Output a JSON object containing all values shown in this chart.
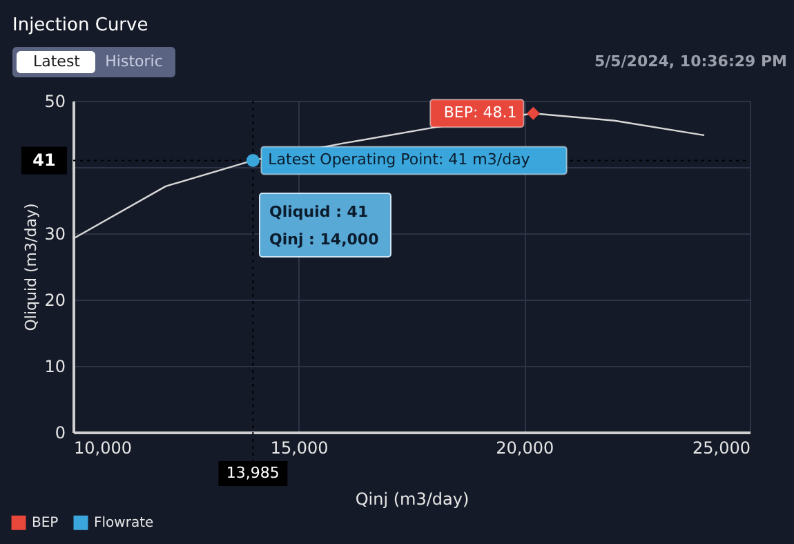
{
  "chart_data": {
    "type": "line",
    "title": "Injection Curve",
    "subtitle": "5/5/2024, 10:36:29 PM",
    "xlabel": "Qinj (m3/day)",
    "ylabel": "Qliquid (m3/day)",
    "series": [
      {
        "color": "#d9d9d9",
        "marker": "none",
        "x": [
          10000,
          12050,
          13985,
          16000,
          18020,
          20200,
          22000,
          23990
        ],
        "values": [
          29.2,
          37.1,
          41,
          43.6,
          46,
          48.1,
          47,
          44.8
        ]
      },
      {
        "type": "scatter",
        "name": "BEP",
        "color": "#e8473b",
        "marker": "diamond",
        "x": [
          20200
        ],
        "values": [
          48.1
        ],
        "value_labels": [
          "BEP: 48.1"
        ]
      },
      {
        "type": "scatter",
        "name": "Flowrate",
        "color": "#3aa6dc",
        "marker": "circle",
        "x": [
          13985
        ],
        "values": [
          41
        ],
        "value_labels": [
          "Latest Operating Point: 41 m3/day"
        ]
      }
    ],
    "xlim": [
      10000,
      25000
    ],
    "xticks": [
      {
        "value": 10000,
        "label": "10,000"
      },
      {
        "value": 15000,
        "label": "15,000"
      },
      {
        "value": 20000,
        "label": "20,000"
      },
      {
        "value": 25000,
        "label": "25,000"
      }
    ],
    "ylim": [
      0,
      50
    ],
    "yticks": [
      0,
      10,
      20,
      30,
      {
        "value": 40,
        "label": null
      },
      50
    ],
    "ref_lines": [
      {
        "axis": "x",
        "value": 13985,
        "label": "13,985",
        "line_style": "dotted",
        "color": "#000000"
      },
      {
        "axis": "y",
        "value": 41,
        "label": "41",
        "line_style": "dotted",
        "color": "#000000"
      }
    ],
    "annotations": [
      "Latest",
      "Historic",
      "Qliquid : 41",
      "Qinj : 14,000"
    ],
    "grid": true,
    "legend": "bottom left"
  }
}
